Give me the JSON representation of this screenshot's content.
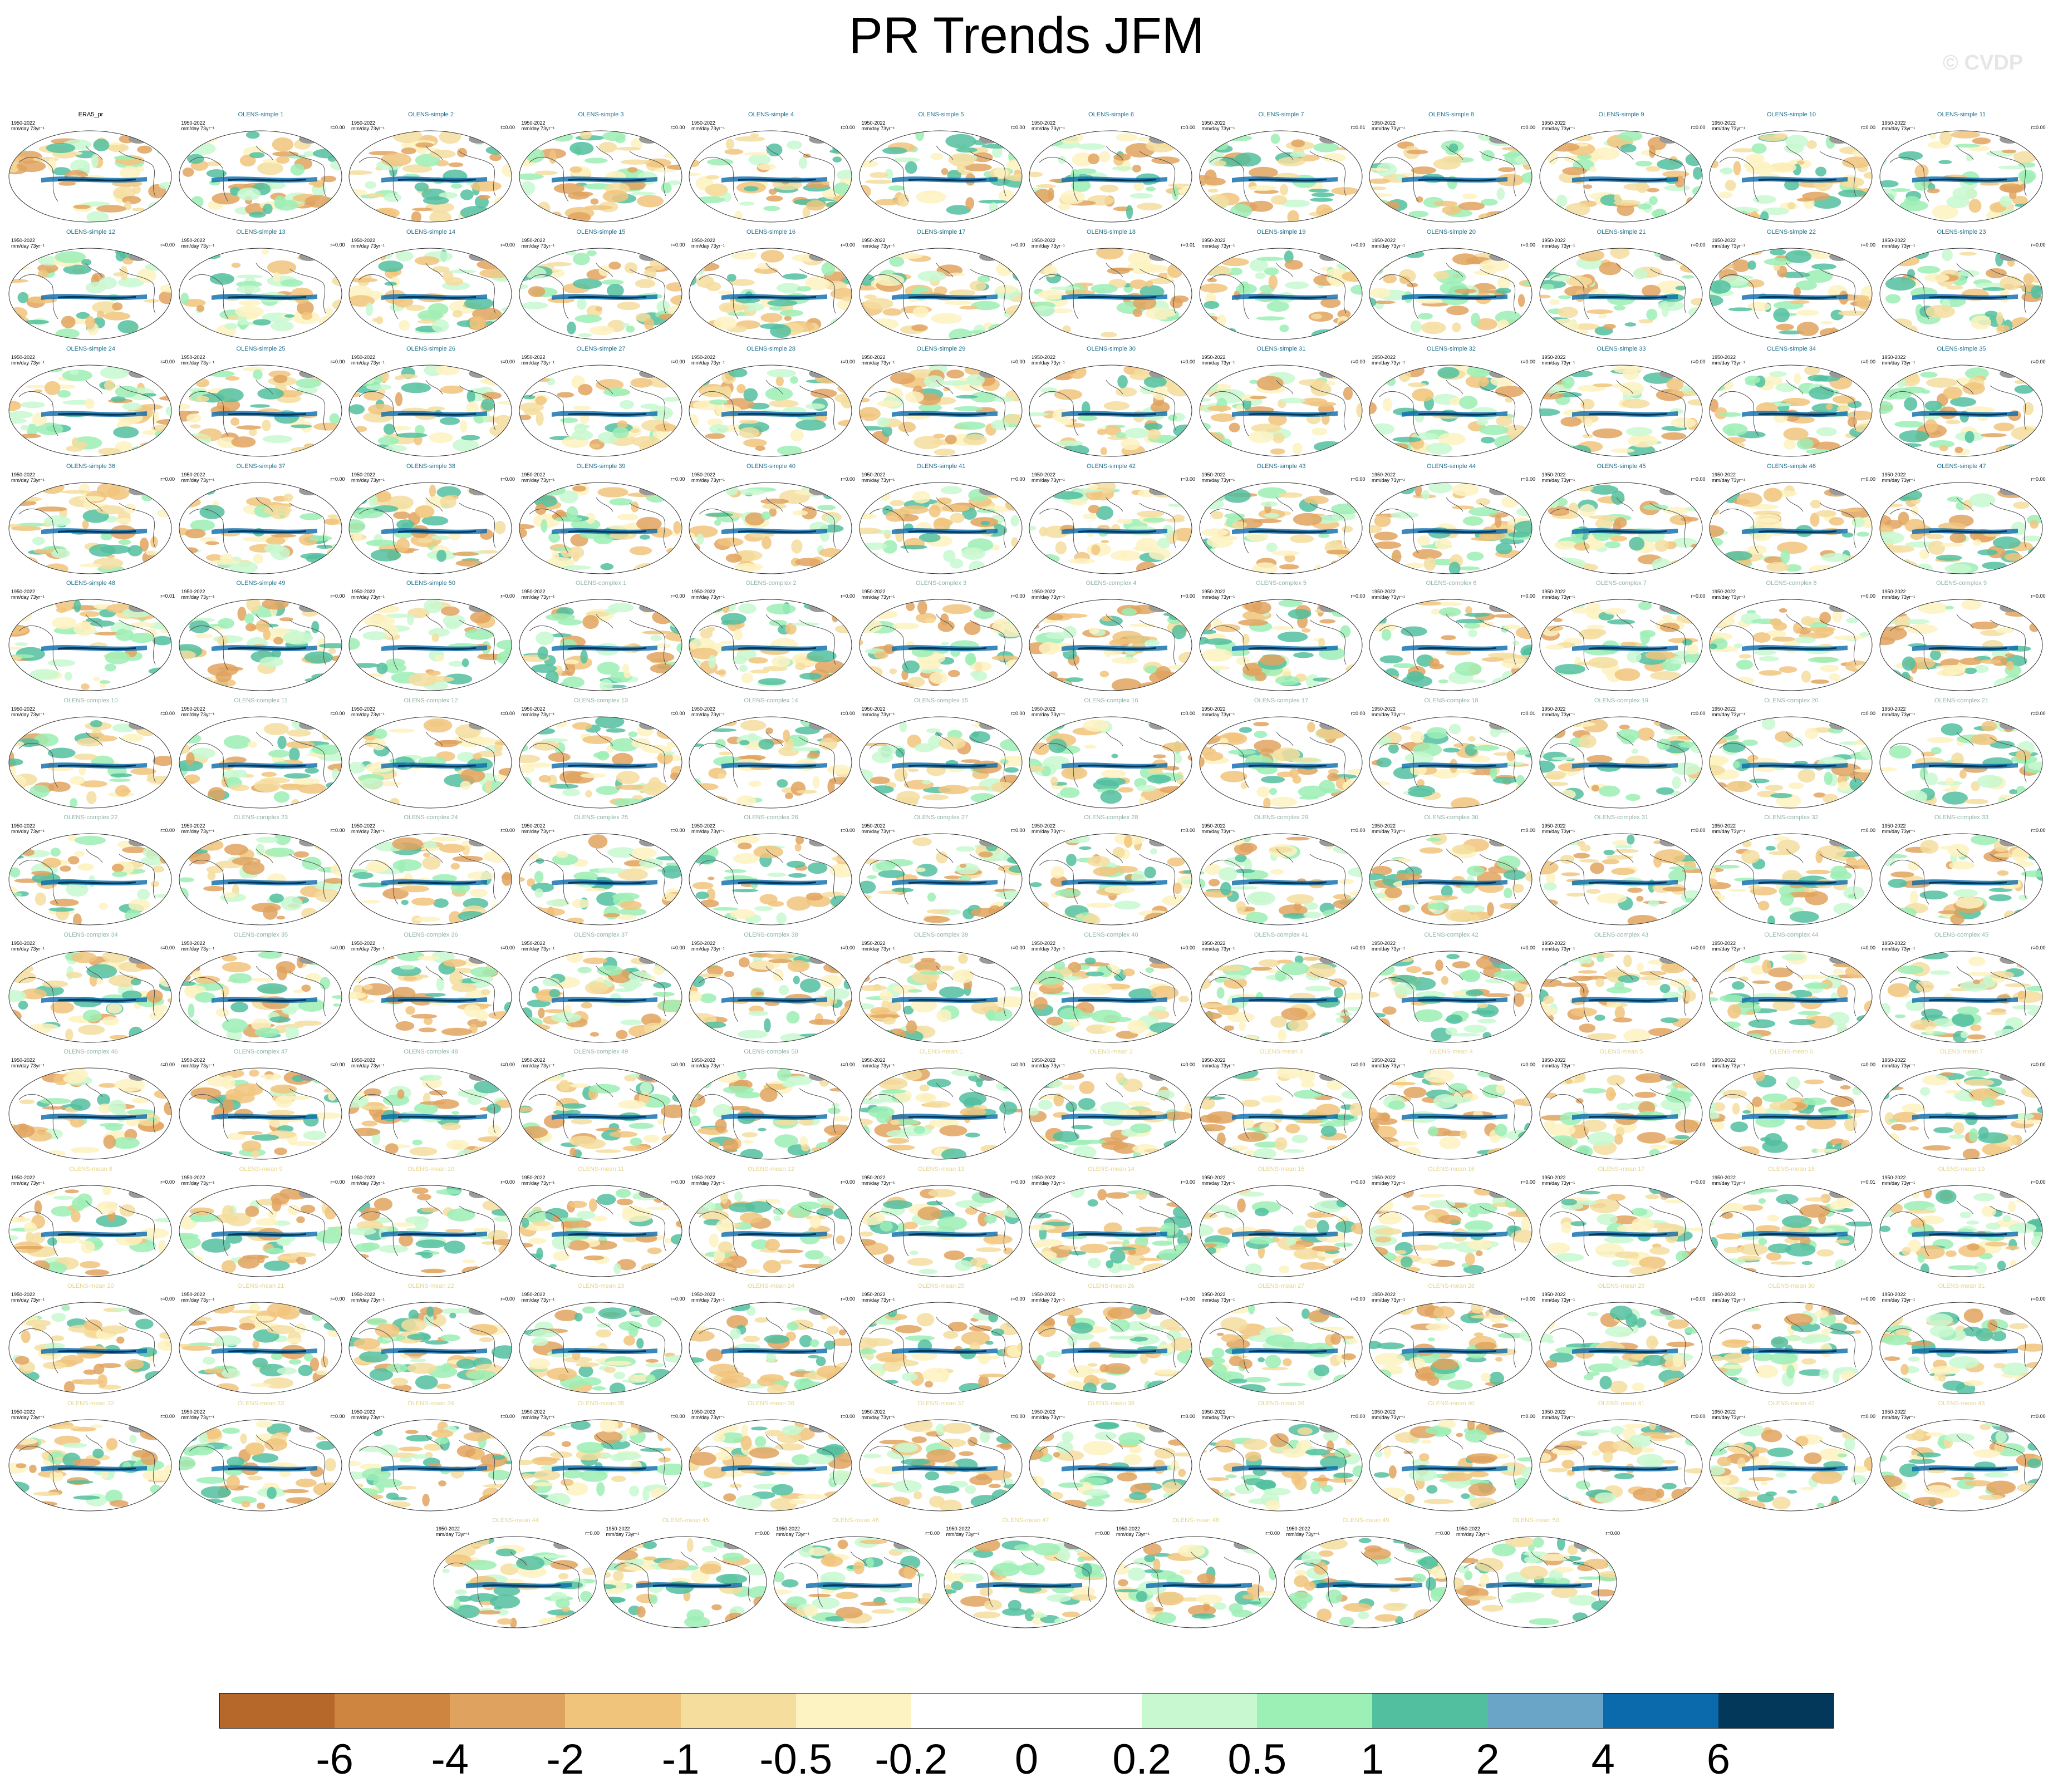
{
  "title": "PR Trends JFM",
  "watermark": "© CVDP",
  "chart_data": {
    "type": "heatmap",
    "title": "PR Trends JFM",
    "description_fields": {
      "period": "1950-2022",
      "units": "mm/day 73yr⁻¹"
    },
    "panels": [
      {
        "name": "ERA5_pr",
        "r": "",
        "color": "#000000"
      },
      {
        "name": "OLENS-simple 1",
        "r": "r=0.00",
        "color": "#1f6f8b"
      },
      {
        "name": "OLENS-simple 2",
        "r": "r=0.00",
        "color": "#1f6f8b"
      },
      {
        "name": "OLENS-simple 3",
        "r": "r=0.00",
        "color": "#1f6f8b"
      },
      {
        "name": "OLENS-simple 4",
        "r": "r=0.00",
        "color": "#1f6f8b"
      },
      {
        "name": "OLENS-simple 5",
        "r": "r=0.00",
        "color": "#1f6f8b"
      },
      {
        "name": "OLENS-simple 6",
        "r": "r=0.00",
        "color": "#1f6f8b"
      },
      {
        "name": "OLENS-simple 7",
        "r": "r=0.01",
        "color": "#1f6f8b"
      },
      {
        "name": "OLENS-simple 8",
        "r": "r=0.00",
        "color": "#1f6f8b"
      },
      {
        "name": "OLENS-simple 9",
        "r": "r=0.00",
        "color": "#1f6f8b"
      },
      {
        "name": "OLENS-simple 10",
        "r": "r=0.00",
        "color": "#1f6f8b"
      },
      {
        "name": "OLENS-simple 11",
        "r": "r=0.00",
        "color": "#1f6f8b"
      },
      {
        "name": "OLENS-simple 12",
        "r": "r=0.00",
        "color": "#1f6f8b"
      },
      {
        "name": "OLENS-simple 13",
        "r": "r=0.00",
        "color": "#1f6f8b"
      },
      {
        "name": "OLENS-simple 14",
        "r": "r=0.00",
        "color": "#1f6f8b"
      },
      {
        "name": "OLENS-simple 15",
        "r": "r=0.00",
        "color": "#1f6f8b"
      },
      {
        "name": "OLENS-simple 16",
        "r": "r=0.00",
        "color": "#1f6f8b"
      },
      {
        "name": "OLENS-simple 17",
        "r": "r=0.00",
        "color": "#1f6f8b"
      },
      {
        "name": "OLENS-simple 18",
        "r": "r=0.01",
        "color": "#1f6f8b"
      },
      {
        "name": "OLENS-simple 19",
        "r": "r=0.00",
        "color": "#1f6f8b"
      },
      {
        "name": "OLENS-simple 20",
        "r": "r=0.00",
        "color": "#1f6f8b"
      },
      {
        "name": "OLENS-simple 21",
        "r": "r=0.00",
        "color": "#1f6f8b"
      },
      {
        "name": "OLENS-simple 22",
        "r": "r=0.00",
        "color": "#1f6f8b"
      },
      {
        "name": "OLENS-simple 23",
        "r": "r=0.00",
        "color": "#1f6f8b"
      },
      {
        "name": "OLENS-simple 24",
        "r": "r=0.00",
        "color": "#1f6f8b"
      },
      {
        "name": "OLENS-simple 25",
        "r": "r=0.00",
        "color": "#1f6f8b"
      },
      {
        "name": "OLENS-simple 26",
        "r": "r=0.00",
        "color": "#1f6f8b"
      },
      {
        "name": "OLENS-simple 27",
        "r": "r=0.00",
        "color": "#1f6f8b"
      },
      {
        "name": "OLENS-simple 28",
        "r": "r=0.00",
        "color": "#1f6f8b"
      },
      {
        "name": "OLENS-simple 29",
        "r": "r=0.00",
        "color": "#1f6f8b"
      },
      {
        "name": "OLENS-simple 30",
        "r": "r=0.00",
        "color": "#1f6f8b"
      },
      {
        "name": "OLENS-simple 31",
        "r": "r=0.00",
        "color": "#1f6f8b"
      },
      {
        "name": "OLENS-simple 32",
        "r": "r=0.00",
        "color": "#1f6f8b"
      },
      {
        "name": "OLENS-simple 33",
        "r": "r=0.00",
        "color": "#1f6f8b"
      },
      {
        "name": "OLENS-simple 34",
        "r": "r=0.00",
        "color": "#1f6f8b"
      },
      {
        "name": "OLENS-simple 35",
        "r": "r=0.00",
        "color": "#1f6f8b"
      },
      {
        "name": "OLENS-simple 36",
        "r": "r=0.00",
        "color": "#1f6f8b"
      },
      {
        "name": "OLENS-simple 37",
        "r": "r=0.00",
        "color": "#1f6f8b"
      },
      {
        "name": "OLENS-simple 38",
        "r": "r=0.00",
        "color": "#1f6f8b"
      },
      {
        "name": "OLENS-simple 39",
        "r": "r=0.00",
        "color": "#1f6f8b"
      },
      {
        "name": "OLENS-simple 40",
        "r": "r=0.00",
        "color": "#1f6f8b"
      },
      {
        "name": "OLENS-simple 41",
        "r": "r=0.00",
        "color": "#1f6f8b"
      },
      {
        "name": "OLENS-simple 42",
        "r": "r=0.00",
        "color": "#1f6f8b"
      },
      {
        "name": "OLENS-simple 43",
        "r": "r=0.00",
        "color": "#1f6f8b"
      },
      {
        "name": "OLENS-simple 44",
        "r": "r=0.00",
        "color": "#1f6f8b"
      },
      {
        "name": "OLENS-simple 45",
        "r": "r=0.00",
        "color": "#1f6f8b"
      },
      {
        "name": "OLENS-simple 46",
        "r": "r=0.00",
        "color": "#1f6f8b"
      },
      {
        "name": "OLENS-simple 47",
        "r": "r=0.00",
        "color": "#1f6f8b"
      },
      {
        "name": "OLENS-simple 48",
        "r": "r=0.01",
        "color": "#1f6f8b"
      },
      {
        "name": "OLENS-simple 49",
        "r": "r=0.00",
        "color": "#1f6f8b"
      },
      {
        "name": "OLENS-simple 50",
        "r": "r=0.00",
        "color": "#1f6f8b"
      },
      {
        "name": "OLENS-complex 1",
        "r": "r=0.00",
        "color": "#8fb5a3"
      },
      {
        "name": "OLENS-complex 2",
        "r": "r=0.00",
        "color": "#8fb5a3"
      },
      {
        "name": "OLENS-complex 3",
        "r": "r=0.00",
        "color": "#8fb5a3"
      },
      {
        "name": "OLENS-complex 4",
        "r": "r=0.00",
        "color": "#8fb5a3"
      },
      {
        "name": "OLENS-complex 5",
        "r": "r=0.00",
        "color": "#8fb5a3"
      },
      {
        "name": "OLENS-complex 6",
        "r": "r=0.00",
        "color": "#8fb5a3"
      },
      {
        "name": "OLENS-complex 7",
        "r": "r=0.00",
        "color": "#8fb5a3"
      },
      {
        "name": "OLENS-complex 8",
        "r": "r=0.00",
        "color": "#8fb5a3"
      },
      {
        "name": "OLENS-complex 9",
        "r": "r=0.00",
        "color": "#8fb5a3"
      },
      {
        "name": "OLENS-complex 10",
        "r": "r=0.00",
        "color": "#8fb5a3"
      },
      {
        "name": "OLENS-complex 11",
        "r": "r=0.00",
        "color": "#8fb5a3"
      },
      {
        "name": "OLENS-complex 12",
        "r": "r=0.00",
        "color": "#8fb5a3"
      },
      {
        "name": "OLENS-complex 13",
        "r": "r=0.00",
        "color": "#8fb5a3"
      },
      {
        "name": "OLENS-complex 14",
        "r": "r=0.00",
        "color": "#8fb5a3"
      },
      {
        "name": "OLENS-complex 15",
        "r": "r=0.00",
        "color": "#8fb5a3"
      },
      {
        "name": "OLENS-complex 16",
        "r": "r=0.00",
        "color": "#8fb5a3"
      },
      {
        "name": "OLENS-complex 17",
        "r": "r=0.00",
        "color": "#8fb5a3"
      },
      {
        "name": "OLENS-complex 18",
        "r": "r=0.01",
        "color": "#8fb5a3"
      },
      {
        "name": "OLENS-complex 19",
        "r": "r=0.00",
        "color": "#8fb5a3"
      },
      {
        "name": "OLENS-complex 20",
        "r": "r=0.00",
        "color": "#8fb5a3"
      },
      {
        "name": "OLENS-complex 21",
        "r": "r=0.00",
        "color": "#8fb5a3"
      },
      {
        "name": "OLENS-complex 22",
        "r": "r=0.00",
        "color": "#8fb5a3"
      },
      {
        "name": "OLENS-complex 23",
        "r": "r=0.00",
        "color": "#8fb5a3"
      },
      {
        "name": "OLENS-complex 24",
        "r": "r=0.00",
        "color": "#8fb5a3"
      },
      {
        "name": "OLENS-complex 25",
        "r": "r=0.00",
        "color": "#8fb5a3"
      },
      {
        "name": "OLENS-complex 26",
        "r": "r=0.00",
        "color": "#8fb5a3"
      },
      {
        "name": "OLENS-complex 27",
        "r": "r=0.00",
        "color": "#8fb5a3"
      },
      {
        "name": "OLENS-complex 28",
        "r": "r=0.00",
        "color": "#8fb5a3"
      },
      {
        "name": "OLENS-complex 29",
        "r": "r=0.00",
        "color": "#8fb5a3"
      },
      {
        "name": "OLENS-complex 30",
        "r": "r=0.00",
        "color": "#8fb5a3"
      },
      {
        "name": "OLENS-complex 31",
        "r": "r=0.00",
        "color": "#8fb5a3"
      },
      {
        "name": "OLENS-complex 32",
        "r": "r=0.00",
        "color": "#8fb5a3"
      },
      {
        "name": "OLENS-complex 33",
        "r": "r=0.00",
        "color": "#8fb5a3"
      },
      {
        "name": "OLENS-complex 34",
        "r": "r=0.00",
        "color": "#8fb5a3"
      },
      {
        "name": "OLENS-complex 35",
        "r": "r=0.00",
        "color": "#8fb5a3"
      },
      {
        "name": "OLENS-complex 36",
        "r": "r=0.00",
        "color": "#8fb5a3"
      },
      {
        "name": "OLENS-complex 37",
        "r": "r=0.00",
        "color": "#8fb5a3"
      },
      {
        "name": "OLENS-complex 38",
        "r": "r=0.00",
        "color": "#8fb5a3"
      },
      {
        "name": "OLENS-complex 39",
        "r": "r=0.00",
        "color": "#8fb5a3"
      },
      {
        "name": "OLENS-complex 40",
        "r": "r=0.00",
        "color": "#8fb5a3"
      },
      {
        "name": "OLENS-complex 41",
        "r": "r=0.00",
        "color": "#8fb5a3"
      },
      {
        "name": "OLENS-complex 42",
        "r": "r=0.00",
        "color": "#8fb5a3"
      },
      {
        "name": "OLENS-complex 43",
        "r": "r=0.00",
        "color": "#8fb5a3"
      },
      {
        "name": "OLENS-complex 44",
        "r": "r=0.00",
        "color": "#8fb5a3"
      },
      {
        "name": "OLENS-complex 45",
        "r": "r=0.00",
        "color": "#8fb5a3"
      },
      {
        "name": "OLENS-complex 46",
        "r": "r=0.00",
        "color": "#8fb5a3"
      },
      {
        "name": "OLENS-complex 47",
        "r": "r=0.00",
        "color": "#8fb5a3"
      },
      {
        "name": "OLENS-complex 48",
        "r": "r=0.00",
        "color": "#8fb5a3"
      },
      {
        "name": "OLENS-complex 49",
        "r": "r=0.00",
        "color": "#8fb5a3"
      },
      {
        "name": "OLENS-complex 50",
        "r": "r=0.00",
        "color": "#8fb5a3"
      },
      {
        "name": "OLENS-mean 1",
        "r": "r=0.00",
        "color": "#e6d58a"
      },
      {
        "name": "OLENS-mean 2",
        "r": "r=0.00",
        "color": "#e6d58a"
      },
      {
        "name": "OLENS-mean 3",
        "r": "r=0.00",
        "color": "#e6d58a"
      },
      {
        "name": "OLENS-mean 4",
        "r": "r=0.00",
        "color": "#e6d58a"
      },
      {
        "name": "OLENS-mean 5",
        "r": "r=0.00",
        "color": "#e6d58a"
      },
      {
        "name": "OLENS-mean 6",
        "r": "r=0.00",
        "color": "#e6d58a"
      },
      {
        "name": "OLENS-mean 7",
        "r": "r=0.00",
        "color": "#e6d58a"
      },
      {
        "name": "OLENS-mean 8",
        "r": "r=0.00",
        "color": "#e6d58a"
      },
      {
        "name": "OLENS-mean 9",
        "r": "r=0.00",
        "color": "#e6d58a"
      },
      {
        "name": "OLENS-mean 10",
        "r": "r=0.00",
        "color": "#e6d58a"
      },
      {
        "name": "OLENS-mean 11",
        "r": "r=0.00",
        "color": "#e6d58a"
      },
      {
        "name": "OLENS-mean 12",
        "r": "r=0.00",
        "color": "#e6d58a"
      },
      {
        "name": "OLENS-mean 13",
        "r": "r=0.00",
        "color": "#e6d58a"
      },
      {
        "name": "OLENS-mean 14",
        "r": "r=0.00",
        "color": "#e6d58a"
      },
      {
        "name": "OLENS-mean 15",
        "r": "r=0.00",
        "color": "#e6d58a"
      },
      {
        "name": "OLENS-mean 16",
        "r": "r=0.00",
        "color": "#e6d58a"
      },
      {
        "name": "OLENS-mean 17",
        "r": "r=0.00",
        "color": "#e6d58a"
      },
      {
        "name": "OLENS-mean 18",
        "r": "r=0.01",
        "color": "#e6d58a"
      },
      {
        "name": "OLENS-mean 19",
        "r": "r=0.00",
        "color": "#e6d58a"
      },
      {
        "name": "OLENS-mean 20",
        "r": "r=0.00",
        "color": "#e6d58a"
      },
      {
        "name": "OLENS-mean 21",
        "r": "r=0.00",
        "color": "#e6d58a"
      },
      {
        "name": "OLENS-mean 22",
        "r": "r=0.00",
        "color": "#e6d58a"
      },
      {
        "name": "OLENS-mean 23",
        "r": "r=0.00",
        "color": "#e6d58a"
      },
      {
        "name": "OLENS-mean 24",
        "r": "r=0.00",
        "color": "#e6d58a"
      },
      {
        "name": "OLENS-mean 25",
        "r": "r=0.00",
        "color": "#e6d58a"
      },
      {
        "name": "OLENS-mean 26",
        "r": "r=0.00",
        "color": "#e6d58a"
      },
      {
        "name": "OLENS-mean 27",
        "r": "r=0.00",
        "color": "#e6d58a"
      },
      {
        "name": "OLENS-mean 28",
        "r": "r=0.00",
        "color": "#e6d58a"
      },
      {
        "name": "OLENS-mean 29",
        "r": "r=0.00",
        "color": "#e6d58a"
      },
      {
        "name": "OLENS-mean 30",
        "r": "r=0.00",
        "color": "#e6d58a"
      },
      {
        "name": "OLENS-mean 31",
        "r": "r=0.00",
        "color": "#e6d58a"
      },
      {
        "name": "OLENS-mean 32",
        "r": "r=0.00",
        "color": "#e6d58a"
      },
      {
        "name": "OLENS-mean 33",
        "r": "r=0.00",
        "color": "#e6d58a"
      },
      {
        "name": "OLENS-mean 34",
        "r": "r=0.00",
        "color": "#e6d58a"
      },
      {
        "name": "OLENS-mean 35",
        "r": "r=0.00",
        "color": "#e6d58a"
      },
      {
        "name": "OLENS-mean 36",
        "r": "r=0.00",
        "color": "#e6d58a"
      },
      {
        "name": "OLENS-mean 37",
        "r": "r=0.00",
        "color": "#e6d58a"
      },
      {
        "name": "OLENS-mean 38",
        "r": "r=0.00",
        "color": "#e6d58a"
      },
      {
        "name": "OLENS-mean 39",
        "r": "r=0.00",
        "color": "#e6d58a"
      },
      {
        "name": "OLENS-mean 40",
        "r": "r=0.00",
        "color": "#e6d58a"
      },
      {
        "name": "OLENS-mean 41",
        "r": "r=0.00",
        "color": "#e6d58a"
      },
      {
        "name": "OLENS-mean 42",
        "r": "r=0.00",
        "color": "#e6d58a"
      },
      {
        "name": "OLENS-mean 43",
        "r": "r=0.00",
        "color": "#e6d58a"
      },
      {
        "name": "OLENS-mean 44",
        "r": "r=0.00",
        "color": "#e6d58a"
      },
      {
        "name": "OLENS-mean 45",
        "r": "r=0.00",
        "color": "#e6d58a"
      },
      {
        "name": "OLENS-mean 46",
        "r": "r=0.00",
        "color": "#e6d58a"
      },
      {
        "name": "OLENS-mean 47",
        "r": "r=0.00",
        "color": "#e6d58a"
      },
      {
        "name": "OLENS-mean 48",
        "r": "r=0.00",
        "color": "#e6d58a"
      },
      {
        "name": "OLENS-mean 49",
        "r": "r=0.00",
        "color": "#e6d58a"
      },
      {
        "name": "OLENS-mean 50",
        "r": "r=0.00",
        "color": "#e6d58a"
      }
    ],
    "colorbar": {
      "ticks": [
        "-6",
        "-4",
        "-2",
        "-1",
        "-0.5",
        "-0.2",
        "0",
        "0.2",
        "0.5",
        "1",
        "2",
        "4",
        "6"
      ],
      "colors": [
        "#b5682a",
        "#cd853f",
        "#e0a35f",
        "#f1c47c",
        "#f5dd9e",
        "#fdf2c1",
        "#ffffff",
        "#ffffff",
        "#c8f8d0",
        "#9cefb5",
        "#52bf9f",
        "#6aa5c7",
        "#0a6aab",
        "#03385a"
      ]
    }
  }
}
